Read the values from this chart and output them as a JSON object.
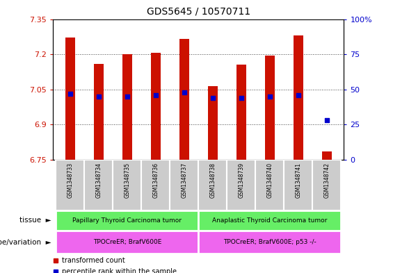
{
  "title": "GDS5645 / 10570711",
  "samples": [
    "GSM1348733",
    "GSM1348734",
    "GSM1348735",
    "GSM1348736",
    "GSM1348737",
    "GSM1348738",
    "GSM1348739",
    "GSM1348740",
    "GSM1348741",
    "GSM1348742"
  ],
  "transformed_count": [
    7.27,
    7.16,
    7.2,
    7.205,
    7.265,
    7.065,
    7.155,
    7.195,
    7.28,
    6.785
  ],
  "percentile_rank": [
    47,
    45,
    45,
    46,
    48,
    44,
    44,
    45,
    46,
    28
  ],
  "ylim_left": [
    6.75,
    7.35
  ],
  "ylim_right": [
    0,
    100
  ],
  "yticks_left": [
    6.75,
    6.9,
    7.05,
    7.2,
    7.35
  ],
  "yticks_right": [
    0,
    25,
    50,
    75,
    100
  ],
  "ytick_labels_left": [
    "6.75",
    "6.9",
    "7.05",
    "7.2",
    "7.35"
  ],
  "ytick_labels_right": [
    "0",
    "25",
    "50",
    "75",
    "100%"
  ],
  "bar_color": "#cc1100",
  "dot_color": "#0000cc",
  "bar_bottom": 6.75,
  "tissue_groups": [
    {
      "label": "Papillary Thyroid Carcinoma tumor",
      "start": 0,
      "end": 5,
      "color": "#66ee66"
    },
    {
      "label": "Anaplastic Thyroid Carcinoma tumor",
      "start": 5,
      "end": 10,
      "color": "#66ee66"
    }
  ],
  "genotype_groups": [
    {
      "label": "TPOCreER; BrafV600E",
      "start": 0,
      "end": 5,
      "color": "#ee66ee"
    },
    {
      "label": "TPOCreER; BrafV600E; p53 -/-",
      "start": 5,
      "end": 10,
      "color": "#ee66ee"
    }
  ],
  "tissue_label": "tissue",
  "genotype_label": "genotype/variation",
  "legend_items": [
    {
      "color": "#cc1100",
      "label": "transformed count"
    },
    {
      "color": "#0000cc",
      "label": "percentile rank within the sample"
    }
  ],
  "grid_color": "#444444",
  "bar_row_color": "#cccccc",
  "bar_width": 0.35
}
